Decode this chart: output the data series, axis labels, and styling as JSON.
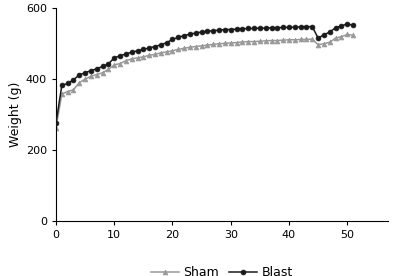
{
  "sham_x": [
    0,
    1,
    2,
    3,
    4,
    5,
    6,
    7,
    8,
    9,
    10,
    11,
    12,
    13,
    14,
    15,
    16,
    17,
    18,
    19,
    20,
    21,
    22,
    23,
    24,
    25,
    26,
    27,
    28,
    29,
    30,
    31,
    32,
    33,
    34,
    35,
    36,
    37,
    38,
    39,
    40,
    41,
    42,
    43,
    44,
    45,
    46,
    47,
    48,
    49,
    50,
    51
  ],
  "sham_y": [
    263,
    358,
    365,
    370,
    390,
    400,
    408,
    413,
    418,
    428,
    440,
    444,
    452,
    457,
    460,
    463,
    467,
    470,
    474,
    477,
    480,
    484,
    487,
    490,
    492,
    494,
    496,
    498,
    500,
    501,
    502,
    503,
    505,
    506,
    506,
    507,
    508,
    509,
    509,
    510,
    511,
    511,
    512,
    512,
    513,
    497,
    500,
    504,
    516,
    520,
    526,
    524
  ],
  "blast_x": [
    0,
    1,
    2,
    3,
    4,
    5,
    6,
    7,
    8,
    9,
    10,
    11,
    12,
    13,
    14,
    15,
    16,
    17,
    18,
    19,
    20,
    21,
    22,
    23,
    24,
    25,
    26,
    27,
    28,
    29,
    30,
    31,
    32,
    33,
    34,
    35,
    36,
    37,
    38,
    39,
    40,
    41,
    42,
    43,
    44,
    45,
    46,
    47,
    48,
    49,
    50,
    51
  ],
  "blast_y": [
    276,
    382,
    388,
    398,
    412,
    418,
    424,
    429,
    436,
    443,
    460,
    466,
    471,
    476,
    480,
    484,
    488,
    492,
    497,
    503,
    512,
    518,
    523,
    527,
    530,
    533,
    535,
    537,
    538,
    540,
    540,
    541,
    542,
    543,
    543,
    544,
    544,
    545,
    545,
    546,
    546,
    547,
    547,
    548,
    548,
    516,
    525,
    533,
    545,
    550,
    556,
    552
  ],
  "sham_color": "#999999",
  "blast_color": "#1a1a1a",
  "sham_label": "Sham",
  "blast_label": "Blast",
  "ylabel": "Weight (g)",
  "xlim": [
    0,
    57
  ],
  "ylim": [
    0,
    600
  ],
  "xticks": [
    0,
    10,
    20,
    30,
    40,
    50
  ],
  "yticks": [
    0,
    200,
    400,
    600
  ],
  "bg_color": "#ffffff",
  "linewidth": 1.1,
  "markersize": 3.5
}
